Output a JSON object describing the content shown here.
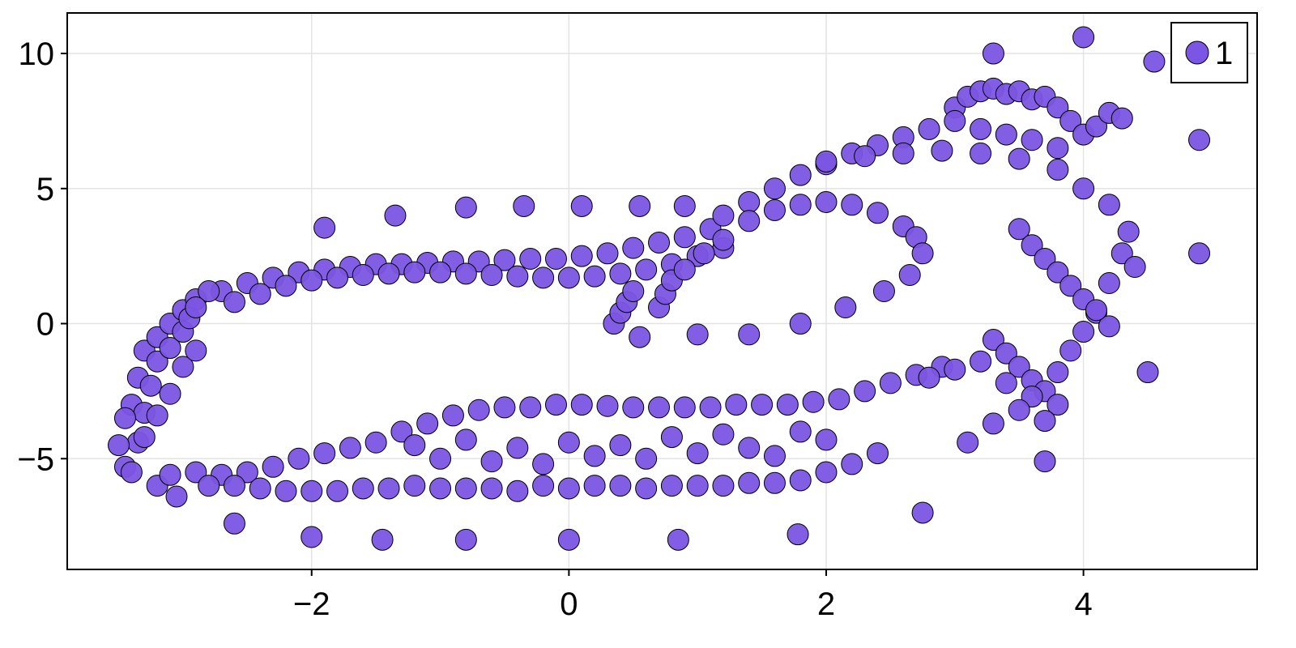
{
  "chart_data": {
    "type": "scatter",
    "title": "",
    "xlabel": "",
    "ylabel": "",
    "xlim": [
      -3.9,
      5.35
    ],
    "ylim": [
      -9.1,
      11.5
    ],
    "xticks": [
      -2,
      0,
      2,
      4
    ],
    "yticks": [
      -5,
      0,
      5,
      10
    ],
    "xtick_labels": [
      "−2",
      "0",
      "2",
      "4"
    ],
    "ytick_labels": [
      "−5",
      "0",
      "5",
      "10"
    ],
    "grid": true,
    "legend": {
      "position": "top-right",
      "entries": [
        "1"
      ]
    },
    "series": [
      {
        "name": "1",
        "color": "#7b55e3",
        "edge_color": "#000000",
        "x": [
          -2.7,
          -2.5,
          -2.3,
          -2.1,
          -1.9,
          -1.7,
          -1.5,
          -1.3,
          -1.1,
          -0.9,
          -0.7,
          -0.5,
          -0.3,
          -0.1,
          0.1,
          0.3,
          0.5,
          0.7,
          0.9,
          1.1,
          -2.6,
          -2.4,
          -2.2,
          -2.0,
          -1.8,
          -1.6,
          -1.4,
          -1.2,
          -1.0,
          -0.8,
          -0.6,
          -0.4,
          -0.2,
          0.0,
          0.2,
          0.4,
          0.6,
          0.8,
          1.0,
          1.2,
          -3.4,
          -3.35,
          -3.3,
          -3.2,
          -3.1,
          -3.0,
          -2.9,
          -2.8,
          -3.35,
          -3.3,
          -3.25,
          -3.2,
          -3.1,
          -3.0,
          -2.95,
          -2.9,
          -3.45,
          -3.5,
          -3.45,
          -3.4,
          -3.3,
          -3.2,
          -3.1,
          -3.0,
          -2.9,
          -3.2,
          -3.1,
          -3.05,
          -2.9,
          -2.7,
          -2.5,
          -2.3,
          -2.1,
          -1.9,
          -1.7,
          -1.5,
          -1.3,
          -1.1,
          -0.9,
          -0.7,
          -0.5,
          -0.3,
          -0.1,
          0.1,
          0.3,
          0.5,
          0.7,
          0.9,
          1.1,
          1.3,
          1.5,
          1.7,
          1.9,
          2.1,
          2.3,
          2.5,
          2.7,
          2.9,
          -2.8,
          -2.6,
          -2.4,
          -2.2,
          -2.0,
          -1.8,
          -1.6,
          -1.4,
          -1.2,
          -1.0,
          -0.8,
          -0.6,
          -0.4,
          -0.2,
          0.0,
          0.2,
          0.4,
          0.6,
          0.8,
          1.0,
          1.2,
          1.4,
          1.6,
          1.8,
          2.0,
          2.2,
          2.4,
          -1.2,
          -1.0,
          -0.8,
          -0.6,
          -0.4,
          -0.2,
          0.0,
          0.2,
          0.4,
          0.6,
          0.8,
          1.0,
          1.2,
          1.4,
          1.6,
          1.8,
          2.0,
          3.0,
          3.1,
          3.2,
          3.3,
          3.4,
          3.5,
          3.6,
          3.7,
          3.8,
          3.9,
          4.0,
          4.1,
          4.2,
          4.3,
          1.2,
          1.4,
          1.6,
          1.8,
          2.0,
          2.2,
          2.4,
          2.6,
          2.8,
          3.0,
          3.2,
          3.4,
          3.6,
          3.8,
          2.0,
          2.3,
          2.6,
          2.9,
          3.2,
          3.5,
          3.8,
          4.0,
          4.2,
          3.5,
          3.6,
          3.7,
          3.8,
          3.9,
          4.0,
          4.1,
          4.2,
          4.3,
          4.35,
          4.4,
          3.3,
          3.4,
          3.5,
          3.6,
          3.7,
          3.8,
          3.9,
          4.0,
          4.1,
          4.2,
          2.8,
          3.0,
          3.2,
          3.4,
          3.6,
          3.8,
          3.1,
          3.3,
          3.5,
          3.7,
          0.35,
          0.4,
          0.45,
          0.5,
          0.55,
          0.7,
          0.75,
          0.8,
          0.9,
          1.05,
          1.2,
          1.4,
          1.6,
          1.8,
          2.0,
          2.2,
          2.4,
          2.6,
          2.7,
          2.75,
          2.65,
          2.45,
          2.15,
          1.8,
          1.4,
          1.0,
          -2.6,
          -2.0,
          -1.45,
          -0.8,
          0.0,
          0.85,
          1.78,
          2.75,
          3.7,
          -1.35,
          -0.8,
          -0.35,
          0.1,
          0.55,
          0.9,
          -1.9,
          3.3,
          4.0,
          4.55,
          4.9,
          4.9,
          4.5
        ],
        "y": [
          1.2,
          1.5,
          1.7,
          1.9,
          2.0,
          2.1,
          2.2,
          2.2,
          2.25,
          2.3,
          2.3,
          2.35,
          2.4,
          2.4,
          2.5,
          2.6,
          2.8,
          3.0,
          3.2,
          3.5,
          0.8,
          1.1,
          1.4,
          1.6,
          1.7,
          1.8,
          1.85,
          1.9,
          1.9,
          1.85,
          1.8,
          1.75,
          1.7,
          1.7,
          1.75,
          1.85,
          2.0,
          2.2,
          2.5,
          2.8,
          -3.0,
          -2.0,
          -1.0,
          -0.5,
          0.0,
          0.5,
          0.9,
          1.2,
          -4.4,
          -3.3,
          -2.3,
          -1.4,
          -0.9,
          -0.3,
          0.2,
          0.6,
          -3.5,
          -4.5,
          -5.3,
          -5.5,
          -4.2,
          -3.4,
          -2.6,
          -1.6,
          -1.0,
          -6.0,
          -5.6,
          -6.4,
          -5.5,
          -5.6,
          -5.5,
          -5.3,
          -5.0,
          -4.8,
          -4.6,
          -4.4,
          -4.0,
          -3.7,
          -3.4,
          -3.2,
          -3.1,
          -3.1,
          -3.0,
          -3.0,
          -3.05,
          -3.1,
          -3.1,
          -3.1,
          -3.1,
          -3.0,
          -3.0,
          -3.0,
          -2.9,
          -2.8,
          -2.5,
          -2.2,
          -1.9,
          -1.6,
          -6.0,
          -6.0,
          -6.1,
          -6.2,
          -6.2,
          -6.2,
          -6.1,
          -6.1,
          -6.0,
          -6.1,
          -6.1,
          -6.1,
          -6.2,
          -6.0,
          -6.1,
          -6.0,
          -6.0,
          -6.1,
          -6.0,
          -6.0,
          -6.0,
          -5.9,
          -5.9,
          -5.8,
          -5.5,
          -5.2,
          -4.8,
          -4.5,
          -5.0,
          -4.3,
          -5.1,
          -4.6,
          -5.2,
          -4.4,
          -4.9,
          -4.5,
          -5.0,
          -4.2,
          -4.8,
          -4.1,
          -4.6,
          -4.9,
          -4.0,
          -4.3,
          8.0,
          8.4,
          8.6,
          8.7,
          8.5,
          8.6,
          8.3,
          8.4,
          8.0,
          7.5,
          7.0,
          7.3,
          7.8,
          7.6,
          4.0,
          4.5,
          5.0,
          5.5,
          5.9,
          6.3,
          6.6,
          6.9,
          7.2,
          7.5,
          7.2,
          7.0,
          6.8,
          6.5,
          6.0,
          6.2,
          6.3,
          6.4,
          6.3,
          6.1,
          5.7,
          5.0,
          4.4,
          3.5,
          2.9,
          2.4,
          1.9,
          1.4,
          0.9,
          0.4,
          -0.1,
          2.6,
          3.4,
          2.1,
          -0.6,
          -1.1,
          -1.6,
          -2.1,
          -2.5,
          -1.8,
          -1.0,
          -0.3,
          0.5,
          1.5,
          -2.0,
          -1.7,
          -1.4,
          -2.2,
          -2.7,
          -3.0,
          -4.4,
          -3.7,
          -3.2,
          -3.6,
          0.0,
          0.4,
          0.8,
          1.2,
          -0.5,
          0.6,
          1.1,
          1.6,
          2.0,
          2.6,
          3.1,
          3.8,
          4.2,
          4.4,
          4.5,
          4.4,
          4.1,
          3.6,
          3.2,
          2.6,
          1.8,
          1.2,
          0.6,
          0.0,
          -0.4,
          -0.4,
          -7.4,
          -7.9,
          -8.0,
          -8.0,
          -8.0,
          -8.0,
          -7.8,
          -7.0,
          -5.1,
          4.0,
          4.3,
          4.35,
          4.35,
          4.35,
          4.35,
          3.55,
          10.0,
          10.6,
          9.7,
          6.8,
          2.6,
          -1.8
        ]
      }
    ]
  }
}
